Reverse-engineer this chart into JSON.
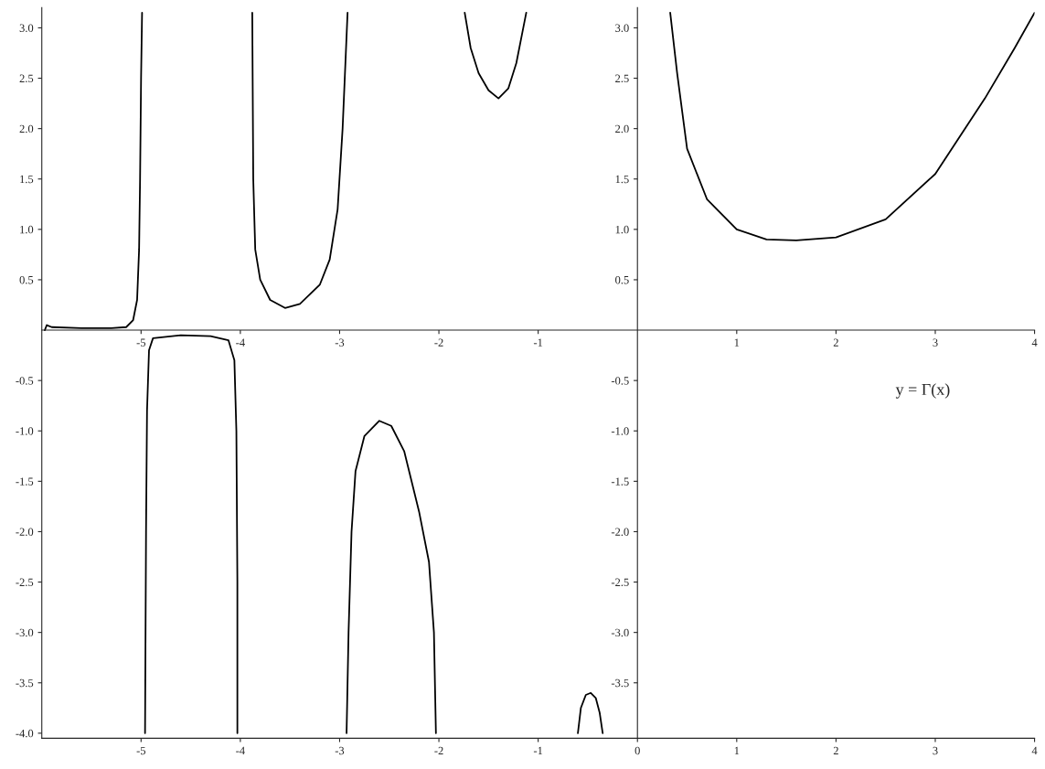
{
  "chart_data": {
    "type": "line",
    "xlim": [
      -6,
      4
    ],
    "ylim": [
      -4.05,
      3.2
    ],
    "xticks": [
      -5,
      -4,
      -3,
      -2,
      -1,
      0,
      1,
      2,
      3,
      4
    ],
    "yticks": [
      {
        "value": 3.0,
        "label": "3.0"
      },
      {
        "value": 2.5,
        "label": "2.5"
      },
      {
        "value": 2.0,
        "label": "2.0"
      },
      {
        "value": 1.5,
        "label": "1.5"
      },
      {
        "value": 1.0,
        "label": "1.0"
      },
      {
        "value": 0.5,
        "label": "0.5"
      },
      {
        "value": -0.5,
        "label": "-0.5"
      },
      {
        "value": -1.0,
        "label": "-1.0"
      },
      {
        "value": -1.5,
        "label": "-1.5"
      },
      {
        "value": -2.0,
        "label": "-2.0"
      },
      {
        "value": -2.5,
        "label": "-2.5"
      },
      {
        "value": -3.0,
        "label": "-3.0"
      },
      {
        "value": -3.5,
        "label": "-3.5"
      },
      {
        "value": -4.0,
        "label": "-4.0"
      }
    ],
    "x2lim": [
      -6,
      4
    ],
    "x2ticks": [
      -5,
      -4,
      -3,
      -2,
      -1,
      1,
      2,
      3,
      4
    ],
    "y2lim": [
      -4.05,
      3.2
    ],
    "y2ticks": [
      {
        "value": 3.0,
        "label": "3.0"
      },
      {
        "value": 2.5,
        "label": "2.5"
      },
      {
        "value": 2.0,
        "label": "2.0"
      },
      {
        "value": 1.5,
        "label": "1.5"
      },
      {
        "value": 1.0,
        "label": "1.0"
      },
      {
        "value": 0.5,
        "label": "0.5"
      },
      {
        "value": -0.5,
        "label": "-0.5"
      },
      {
        "value": -1.0,
        "label": "-1.0"
      },
      {
        "value": -1.5,
        "label": "-1.5"
      },
      {
        "value": -2.0,
        "label": "-2.0"
      },
      {
        "value": -2.5,
        "label": "-2.5"
      },
      {
        "value": -3.0,
        "label": "-3.0"
      },
      {
        "value": -3.5,
        "label": "-3.5"
      }
    ],
    "grid": false,
    "legend": false,
    "marker": "none",
    "line_style": "solid",
    "annotations": [
      "y = Γ(x)"
    ],
    "series": [
      {
        "color": "#000000",
        "x": [
          -5.97,
          -5.95,
          -5.9,
          -5.6,
          -5.3,
          -5.15,
          -5.08,
          -5.04,
          -5.02,
          -5.01,
          -5.0,
          -4.99
        ],
        "values": [
          0.0,
          0.05,
          0.03,
          0.02,
          0.02,
          0.03,
          0.1,
          0.3,
          0.8,
          1.5,
          2.5,
          3.15
        ]
      },
      {
        "color": "#000000",
        "x": [
          -4.96,
          -4.95,
          -4.94,
          -4.92,
          -4.88,
          -4.6,
          -4.3,
          -4.12,
          -4.06,
          -4.04,
          -4.03,
          -4.03
        ],
        "values": [
          -4.0,
          -2.0,
          -0.8,
          -0.2,
          -0.08,
          -0.05,
          -0.06,
          -0.1,
          -0.3,
          -1.0,
          -2.5,
          -4.0
        ]
      },
      {
        "color": "#000000",
        "x": [
          -3.88,
          -3.87,
          -3.85,
          -3.8,
          -3.7,
          -3.55,
          -3.4,
          -3.2,
          -3.1,
          -3.02,
          -2.97,
          -2.92
        ],
        "values": [
          3.15,
          1.5,
          0.8,
          0.5,
          0.3,
          0.22,
          0.26,
          0.45,
          0.7,
          1.2,
          2.0,
          3.15
        ]
      },
      {
        "color": "#000000",
        "x": [
          -2.93,
          -2.91,
          -2.88,
          -2.84,
          -2.75,
          -2.6,
          -2.48,
          -2.35,
          -2.2,
          -2.1,
          -2.05,
          -2.03
        ],
        "values": [
          -4.0,
          -3.0,
          -2.0,
          -1.4,
          -1.05,
          -0.9,
          -0.95,
          -1.2,
          -1.8,
          -2.3,
          -3.0,
          -4.0
        ]
      },
      {
        "color": "#000000",
        "x": [
          -1.74,
          -1.68,
          -1.6,
          -1.5,
          -1.4,
          -1.3,
          -1.22,
          -1.15,
          -1.12
        ],
        "values": [
          3.15,
          2.8,
          2.55,
          2.38,
          2.3,
          2.4,
          2.65,
          3.0,
          3.15
        ]
      },
      {
        "color": "#000000",
        "x": [
          -0.6,
          -0.57,
          -0.52,
          -0.47,
          -0.42,
          -0.38,
          -0.35
        ],
        "values": [
          -4.0,
          -3.75,
          -3.62,
          -3.6,
          -3.65,
          -3.8,
          -4.0
        ]
      },
      {
        "color": "#000000",
        "x": [
          0.33,
          0.4,
          0.5,
          0.7,
          1.0,
          1.3,
          1.6,
          2.0,
          2.5,
          3.0,
          3.5,
          3.8,
          4.0
        ],
        "values": [
          3.15,
          2.55,
          1.8,
          1.3,
          1.0,
          0.9,
          0.89,
          0.92,
          1.1,
          1.55,
          2.3,
          2.8,
          3.15
        ]
      }
    ]
  }
}
